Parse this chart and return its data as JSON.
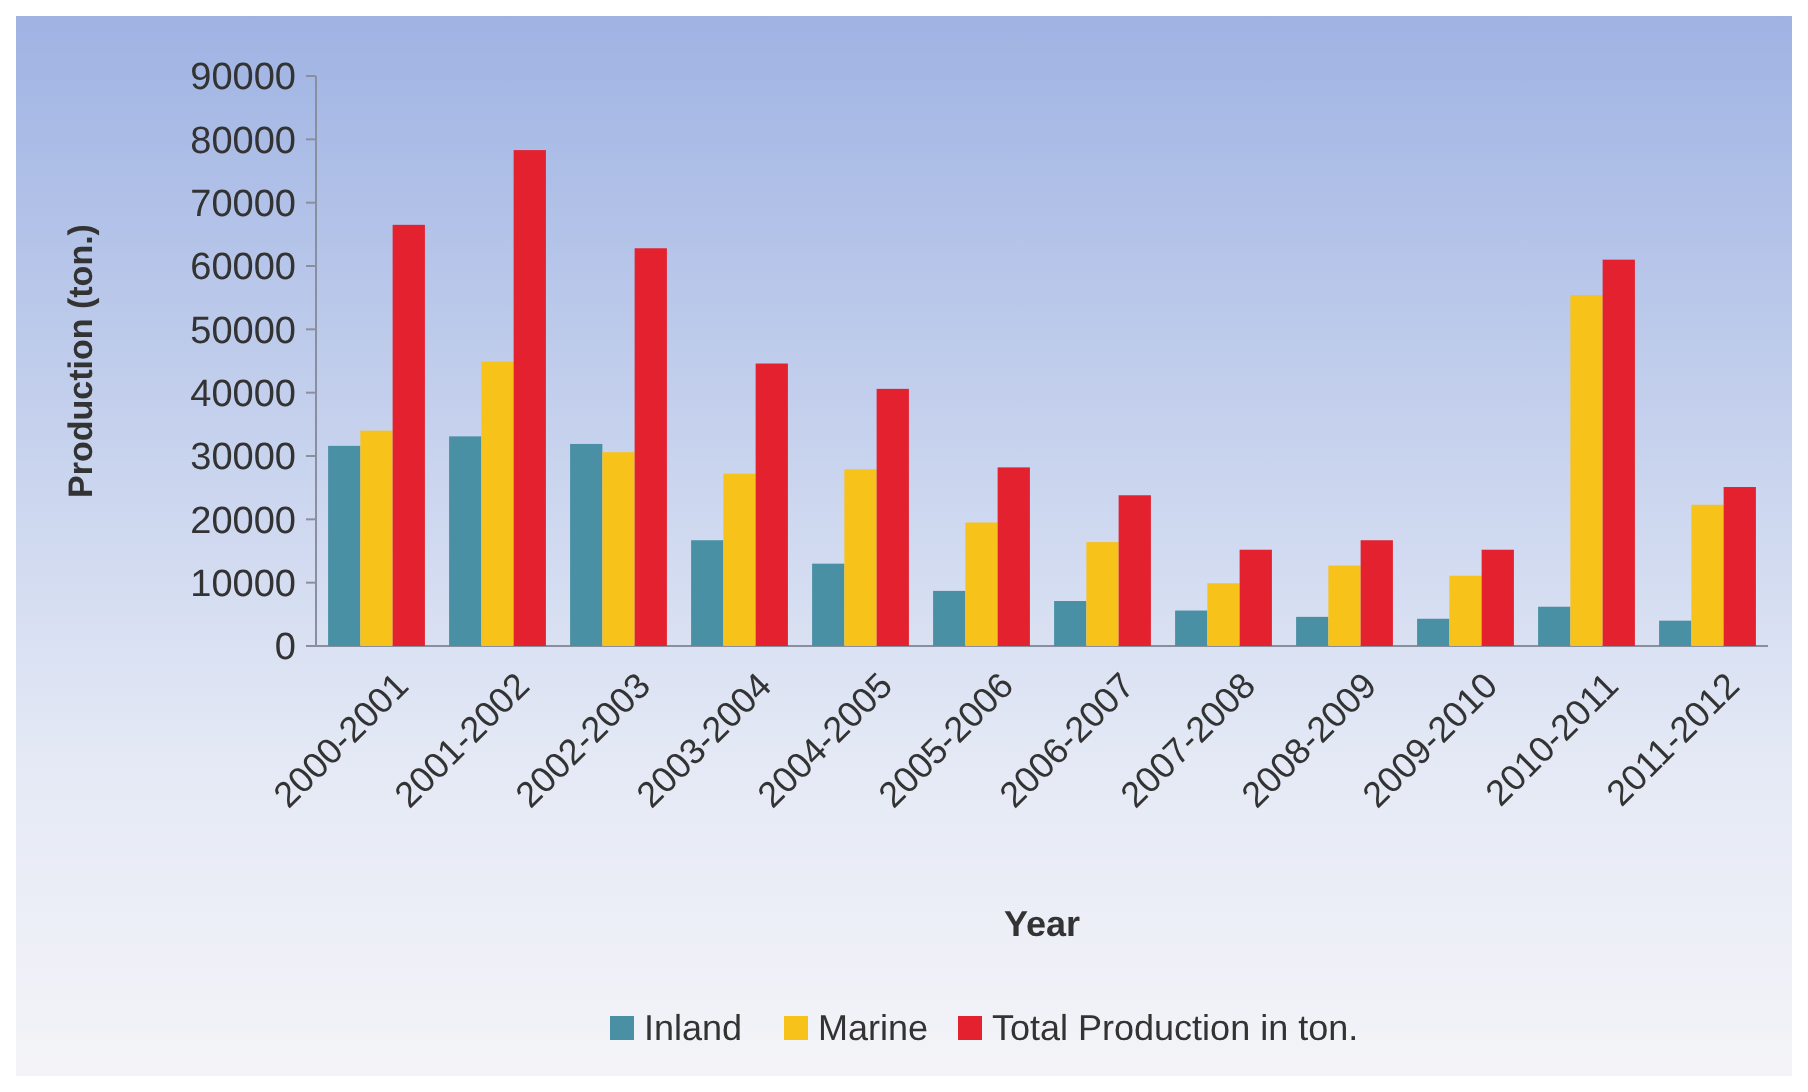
{
  "chart_data": {
    "type": "bar",
    "xlabel": "Year",
    "ylabel": "Production (ton.)",
    "categories": [
      "2000-2001",
      "2001-2002",
      "2002-2003",
      "2003-2004",
      "2004-2005",
      "2005-2006",
      "2006-2007",
      "2007-2008",
      "2008-2009",
      "2009-2010",
      "2010-2011",
      "2011-2012"
    ],
    "series": [
      {
        "name": "Inland",
        "color": "#4a90a4",
        "values": [
          31600,
          33100,
          31900,
          16700,
          13000,
          8700,
          7100,
          5600,
          4600,
          4300,
          6200,
          4000
        ]
      },
      {
        "name": "Marine",
        "color": "#f7c21a",
        "values": [
          34000,
          44900,
          30600,
          27200,
          27900,
          19500,
          16400,
          9900,
          12700,
          11100,
          55400,
          22300
        ]
      },
      {
        "name": "Total Production in ton.",
        "color": "#e3212f",
        "values": [
          66500,
          78300,
          62800,
          44600,
          40600,
          28200,
          23800,
          15200,
          16700,
          15200,
          61000,
          25100
        ]
      }
    ],
    "ylim": [
      0,
      90000
    ],
    "yticks": [
      0,
      10000,
      20000,
      30000,
      40000,
      50000,
      60000,
      70000,
      80000,
      90000
    ],
    "grid": false,
    "legend": "bottom"
  }
}
